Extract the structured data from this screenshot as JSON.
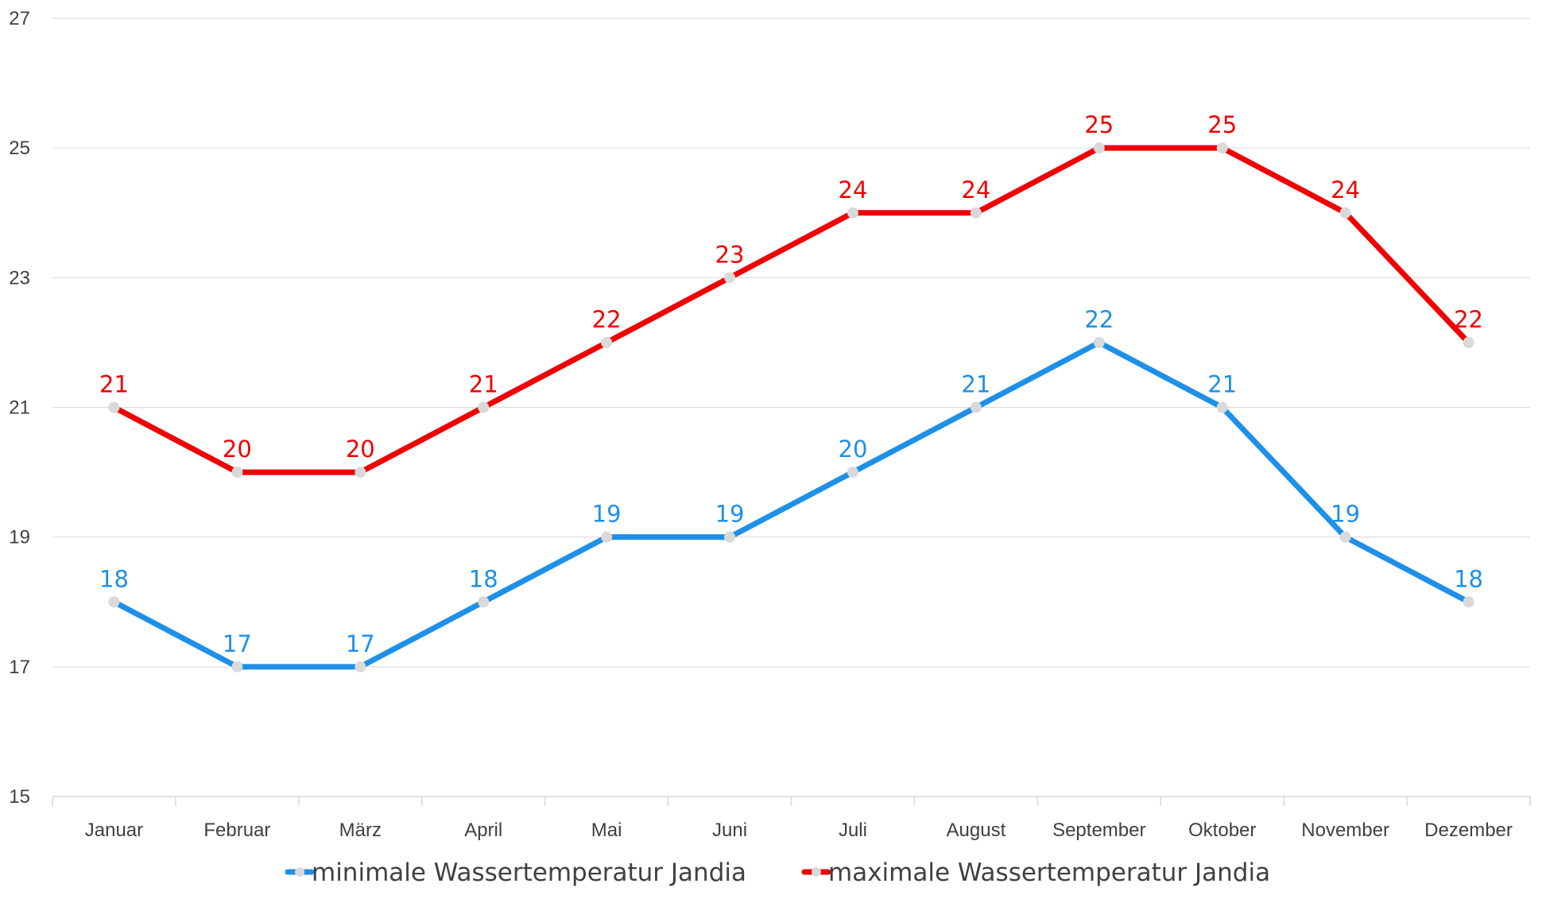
{
  "chart_data": {
    "type": "line",
    "title": "",
    "xlabel": "",
    "ylabel": "",
    "categories": [
      "Januar",
      "Februar",
      "März",
      "April",
      "Mai",
      "Juni",
      "Juli",
      "August",
      "September",
      "Oktober",
      "November",
      "Dezember"
    ],
    "yticks": [
      "15",
      "17",
      "19",
      "21",
      "23",
      "25",
      "27"
    ],
    "ylim": [
      15,
      27
    ],
    "grid": true,
    "legend_position": "bottom",
    "series": [
      {
        "name": "minimale Wassertemperatur Jandia",
        "color": "#1e90e8",
        "values": [
          18,
          17,
          17,
          18,
          19,
          19,
          20,
          21,
          22,
          21,
          19,
          18
        ],
        "labels": [
          "18",
          "17",
          "17",
          "18",
          "19",
          "19",
          "20",
          "21",
          "22",
          "21",
          "19",
          "18"
        ]
      },
      {
        "name": "maximale Wassertemperatur Jandia",
        "color": "#f00000",
        "values": [
          21,
          20,
          20,
          21,
          22,
          23,
          24,
          24,
          25,
          25,
          24,
          22
        ],
        "labels": [
          "21",
          "20",
          "20",
          "21",
          "22",
          "23",
          "24",
          "24",
          "25",
          "25",
          "24",
          "22"
        ]
      }
    ],
    "marker_color": "#d9d9d9",
    "grid_color": "#d9d9d9"
  }
}
